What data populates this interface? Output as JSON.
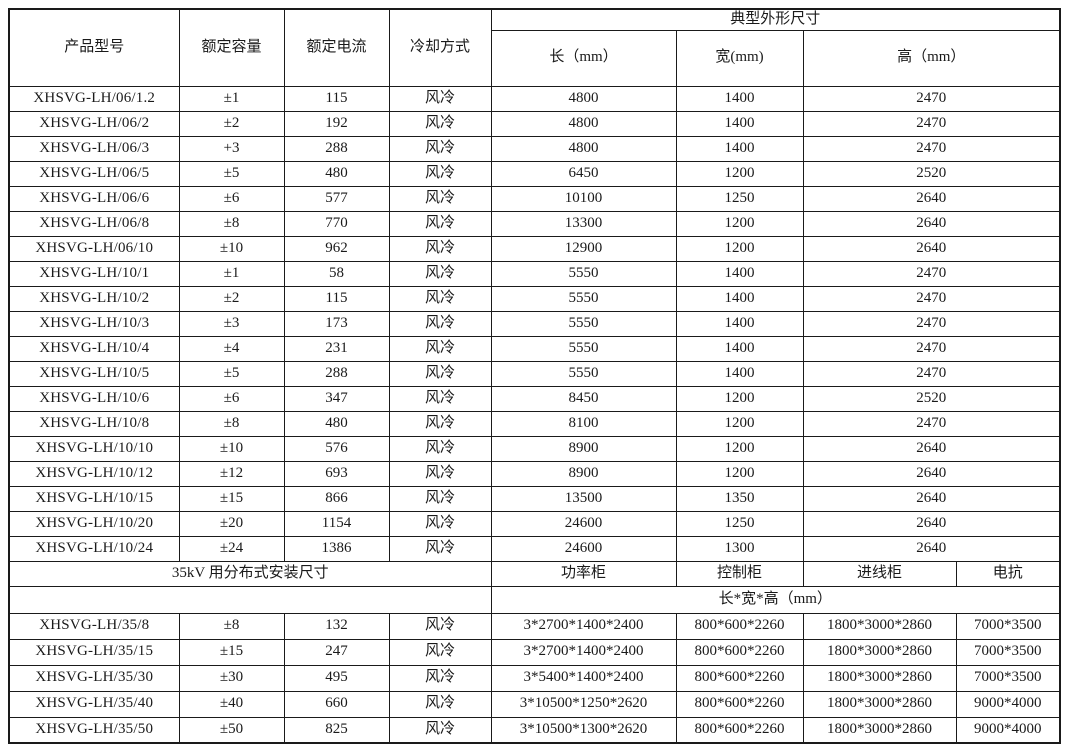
{
  "table": {
    "headers": {
      "col_model": "产品型号",
      "col_capacity": "额定容量",
      "col_current": "额定电流",
      "col_cooling": "冷却方式",
      "dims_group": "典型外形尺寸",
      "col_length": "长（mm）",
      "col_width": "宽(mm)",
      "col_height": "高（mm）"
    },
    "rows": [
      {
        "model": "XHSVG-LH/06/1.2",
        "capacity": "±1",
        "current": "115",
        "cooling": "风冷",
        "length": "4800",
        "width": "1400",
        "height": "2470"
      },
      {
        "model": "XHSVG-LH/06/2",
        "capacity": "±2",
        "current": "192",
        "cooling": "风冷",
        "length": "4800",
        "width": "1400",
        "height": "2470"
      },
      {
        "model": "XHSVG-LH/06/3",
        "capacity": "+3",
        "current": "288",
        "cooling": "风冷",
        "length": "4800",
        "width": "1400",
        "height": "2470"
      },
      {
        "model": "XHSVG-LH/06/5",
        "capacity": "±5",
        "current": "480",
        "cooling": "风冷",
        "length": "6450",
        "width": "1200",
        "height": "2520"
      },
      {
        "model": "XHSVG-LH/06/6",
        "capacity": "±6",
        "current": "577",
        "cooling": "风冷",
        "length": "10100",
        "width": "1250",
        "height": "2640"
      },
      {
        "model": "XHSVG-LH/06/8",
        "capacity": "±8",
        "current": "770",
        "cooling": "风冷",
        "length": "13300",
        "width": "1200",
        "height": "2640"
      },
      {
        "model": "XHSVG-LH/06/10",
        "capacity": "±10",
        "current": "962",
        "cooling": "风冷",
        "length": "12900",
        "width": "1200",
        "height": "2640"
      },
      {
        "model": "XHSVG-LH/10/1",
        "capacity": "±1",
        "current": "58",
        "cooling": "风冷",
        "length": "5550",
        "width": "1400",
        "height": "2470"
      },
      {
        "model": "XHSVG-LH/10/2",
        "capacity": "±2",
        "current": "115",
        "cooling": "风冷",
        "length": "5550",
        "width": "1400",
        "height": "2470"
      },
      {
        "model": "XHSVG-LH/10/3",
        "capacity": "±3",
        "current": "173",
        "cooling": "风冷",
        "length": "5550",
        "width": "1400",
        "height": "2470"
      },
      {
        "model": "XHSVG-LH/10/4",
        "capacity": "±4",
        "current": "231",
        "cooling": "风冷",
        "length": "5550",
        "width": "1400",
        "height": "2470"
      },
      {
        "model": "XHSVG-LH/10/5",
        "capacity": "±5",
        "current": "288",
        "cooling": "风冷",
        "length": "5550",
        "width": "1400",
        "height": "2470"
      },
      {
        "model": "XHSVG-LH/10/6",
        "capacity": "±6",
        "current": "347",
        "cooling": "风冷",
        "length": "8450",
        "width": "1200",
        "height": "2520"
      },
      {
        "model": "XHSVG-LH/10/8",
        "capacity": "±8",
        "current": "480",
        "cooling": "风冷",
        "length": "8100",
        "width": "1200",
        "height": "2470"
      },
      {
        "model": "XHSVG-LH/10/10",
        "capacity": "±10",
        "current": "576",
        "cooling": "风冷",
        "length": "8900",
        "width": "1200",
        "height": "2640"
      },
      {
        "model": "XHSVG-LH/10/12",
        "capacity": "±12",
        "current": "693",
        "cooling": "风冷",
        "length": "8900",
        "width": "1200",
        "height": "2640"
      },
      {
        "model": "XHSVG-LH/10/15",
        "capacity": "±15",
        "current": "866",
        "cooling": "风冷",
        "length": "13500",
        "width": "1350",
        "height": "2640"
      },
      {
        "model": "XHSVG-LH/10/20",
        "capacity": "±20",
        "current": "1154",
        "cooling": "风冷",
        "length": "24600",
        "width": "1250",
        "height": "2640"
      },
      {
        "model": "XHSVG-LH/10/24",
        "capacity": "±24",
        "current": "1386",
        "cooling": "风冷",
        "length": "24600",
        "width": "1300",
        "height": "2640"
      }
    ],
    "section35kv": {
      "title": "35kV 用分布式安装尺寸",
      "col_power": "功率柜",
      "col_control": "控制柜",
      "col_incoming": "进线柜",
      "col_reactor": "电抗",
      "dims_label": "长*宽*高（mm）",
      "rows": [
        {
          "model": "XHSVG-LH/35/8",
          "capacity": "±8",
          "current": "132",
          "cooling": "风冷",
          "power_cabinet": "3*2700*1400*2400",
          "control_cabinet": "800*600*2260",
          "incoming_cabinet": "1800*3000*2860",
          "reactor": "7000*3500"
        },
        {
          "model": "XHSVG-LH/35/15",
          "capacity": "±15",
          "current": "247",
          "cooling": "风冷",
          "power_cabinet": "3*2700*1400*2400",
          "control_cabinet": "800*600*2260",
          "incoming_cabinet": "1800*3000*2860",
          "reactor": "7000*3500"
        },
        {
          "model": "XHSVG-LH/35/30",
          "capacity": "±30",
          "current": "495",
          "cooling": "风冷",
          "power_cabinet": "3*5400*1400*2400",
          "control_cabinet": "800*600*2260",
          "incoming_cabinet": "1800*3000*2860",
          "reactor": "7000*3500"
        },
        {
          "model": "XHSVG-LH/35/40",
          "capacity": "±40",
          "current": "660",
          "cooling": "风冷",
          "power_cabinet": "3*10500*1250*2620",
          "control_cabinet": "800*600*2260",
          "incoming_cabinet": "1800*3000*2860",
          "reactor": "9000*4000"
        },
        {
          "model": "XHSVG-LH/35/50",
          "capacity": "±50",
          "current": "825",
          "cooling": "风冷",
          "power_cabinet": "3*10500*1300*2620",
          "control_cabinet": "800*600*2260",
          "incoming_cabinet": "1800*3000*2860",
          "reactor": "9000*4000"
        }
      ]
    },
    "colors": {
      "border": "#1a1a1a",
      "text": "#1a1a1a",
      "background": "#ffffff"
    }
  }
}
